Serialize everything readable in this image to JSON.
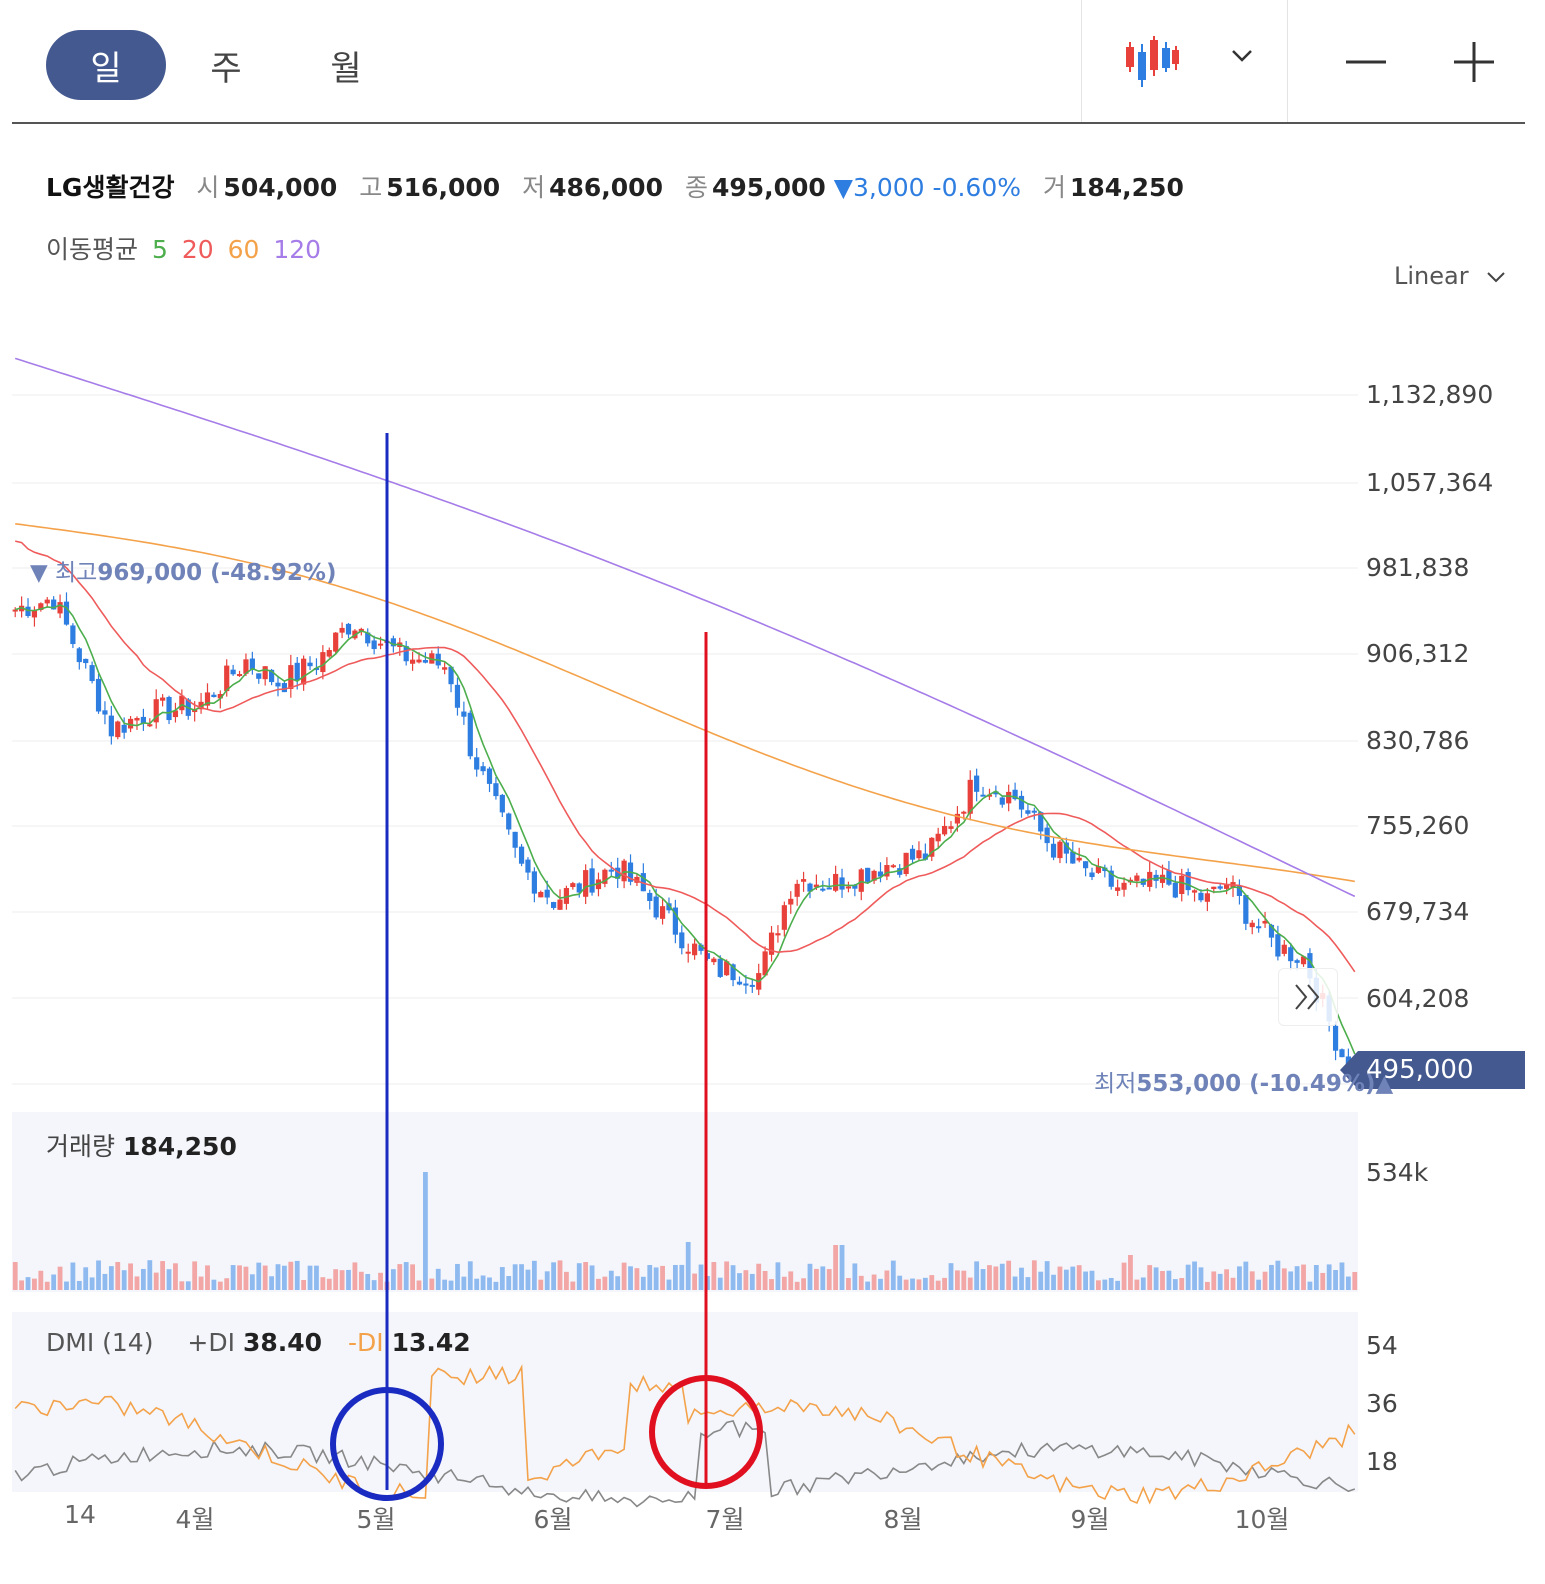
{
  "toolbar": {
    "tabs": [
      {
        "label": "일",
        "active": true
      },
      {
        "label": "주",
        "active": false
      },
      {
        "label": "월",
        "active": false
      }
    ],
    "chart_type_icon": "candlestick-icon",
    "dropdown_icon": "chevron-down-icon",
    "zoom_out_icon": "minus-icon",
    "zoom_in_icon": "plus-icon"
  },
  "stock": {
    "name": "LG생활건강",
    "open_label": "시",
    "open": "504,000",
    "high_label": "고",
    "high": "516,000",
    "low_label": "저",
    "low": "486,000",
    "close_label": "종",
    "close": "495,000",
    "change_symbol": "▼",
    "change": "3,000",
    "change_pct": "-0.60%",
    "volume_label": "거",
    "volume": "184,250"
  },
  "ma_legend": {
    "label": "이동평균",
    "periods": [
      {
        "label": "5",
        "color": "#4cae4c"
      },
      {
        "label": "20",
        "color": "#ef5b5b"
      },
      {
        "label": "60",
        "color": "#f4a24a"
      },
      {
        "label": "120",
        "color": "#a57ce8"
      }
    ]
  },
  "scale": {
    "label": "Linear"
  },
  "price_axis": [
    "1,132,890",
    "1,057,364",
    "981,838",
    "906,312",
    "830,786",
    "755,260",
    "679,734",
    "604,208"
  ],
  "current_price": "495,000",
  "high_marker": {
    "arrow": "▼",
    "prefix": "최고",
    "value": "969,000 (-48.92%)"
  },
  "low_marker": {
    "prefix": "최저",
    "value": "553,000 (-10.49%)",
    "arrow": "▲"
  },
  "volume_panel": {
    "label": "거래량",
    "value": "184,250",
    "axis": "534k"
  },
  "dmi_panel": {
    "label": "DMI (14)",
    "plus_label": "+DI",
    "plus_value": "38.40",
    "minus_label": "-DI",
    "minus_value": "13.42",
    "axis": [
      "54",
      "36",
      "18"
    ]
  },
  "x_axis": [
    "14",
    "4월",
    "5월",
    "6월",
    "7월",
    "8월",
    "9월",
    "10월"
  ],
  "colors": {
    "up": "#e8413b",
    "down": "#2e7de0",
    "accent": "#44598f",
    "plus_di": "#f4a24a",
    "minus_di": "#888888"
  },
  "chart_data": {
    "type": "candlestick",
    "price_range": [
      515000,
      1160000
    ],
    "ma_last_values": {
      "ma5": 510000,
      "ma20": 622000,
      "ma60": 686000,
      "ma120": 700000
    },
    "annotations": [
      {
        "type": "vertical-line",
        "color": "#1a2bc2",
        "at": "5월",
        "circle": true
      },
      {
        "type": "vertical-line",
        "color": "#e01020",
        "at": "7월",
        "circle": true
      }
    ]
  }
}
